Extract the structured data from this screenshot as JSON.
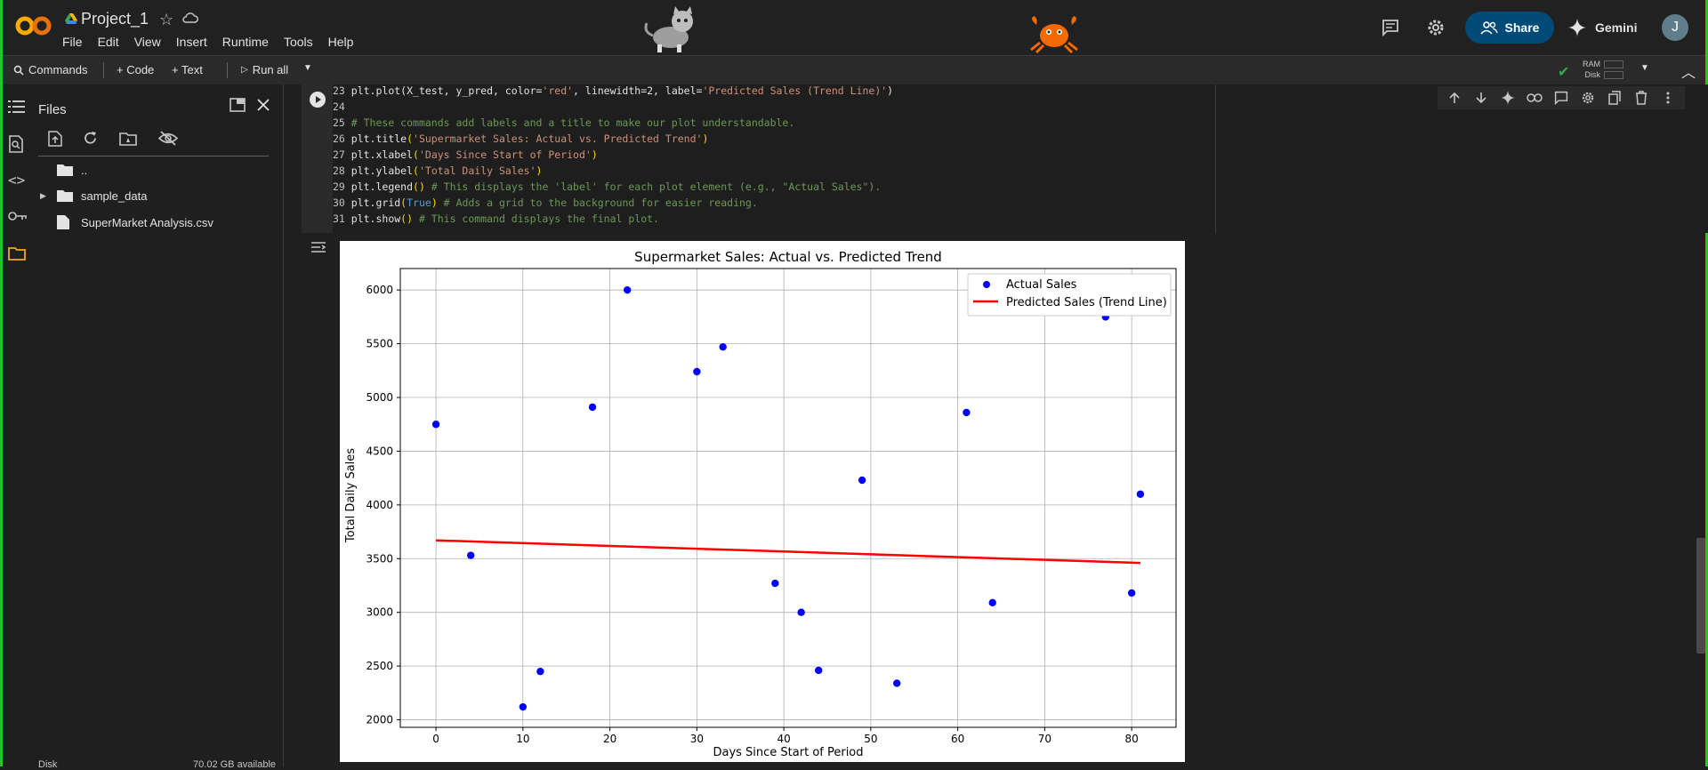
{
  "app": {
    "project_title": "Project_1"
  },
  "menu": [
    "File",
    "Edit",
    "View",
    "Insert",
    "Runtime",
    "Tools",
    "Help"
  ],
  "header": {
    "share_label": "Share",
    "gemini_label": "Gemini",
    "avatar_initial": "J"
  },
  "toolbar": {
    "commands": "Commands",
    "code": "+ Code",
    "text": "+ Text",
    "run_all": "Run all",
    "ram": "RAM",
    "disk": "Disk"
  },
  "files_panel": {
    "title": "Files",
    "items": [
      {
        "label": "..",
        "type": "parent"
      },
      {
        "label": "sample_data",
        "type": "folder"
      },
      {
        "label": "SuperMarket Analysis.csv",
        "type": "file"
      }
    ],
    "disk_label": "Disk",
    "disk_free": "70.02 GB available"
  },
  "code_lines": [
    {
      "n": "23",
      "tokens": [
        [
          "kw",
          "plt.plot(X_test, y_pred, color="
        ],
        [
          "str",
          "'red'"
        ],
        [
          "kw",
          ", linewidth=2, label="
        ],
        [
          "str",
          "'Predicted Sales (Trend Line)'"
        ],
        [
          "kw",
          ")"
        ]
      ]
    },
    {
      "n": "24",
      "tokens": []
    },
    {
      "n": "25",
      "tokens": [
        [
          "cm",
          "# These commands add labels and a title to make our plot understandable."
        ]
      ]
    },
    {
      "n": "26",
      "tokens": [
        [
          "kw",
          "plt.title"
        ],
        [
          "pn",
          "("
        ],
        [
          "str",
          "'Supermarket Sales: Actual vs. Predicted Trend'"
        ],
        [
          "pn",
          ")"
        ]
      ]
    },
    {
      "n": "27",
      "tokens": [
        [
          "kw",
          "plt.xlabel"
        ],
        [
          "pn",
          "("
        ],
        [
          "str",
          "'Days Since Start of Period'"
        ],
        [
          "pn",
          ")"
        ]
      ]
    },
    {
      "n": "28",
      "tokens": [
        [
          "kw",
          "plt.ylabel"
        ],
        [
          "pn",
          "("
        ],
        [
          "str",
          "'Total Daily Sales'"
        ],
        [
          "pn",
          ")"
        ]
      ]
    },
    {
      "n": "29",
      "tokens": [
        [
          "kw",
          "plt.legend"
        ],
        [
          "pn",
          "()"
        ],
        [
          "cm",
          " # This displays the 'label' for each plot element (e.g., \"Actual Sales\")."
        ]
      ]
    },
    {
      "n": "30",
      "tokens": [
        [
          "kw",
          "plt.grid"
        ],
        [
          "pn",
          "("
        ],
        [
          "bl",
          "True"
        ],
        [
          "pn",
          ")"
        ],
        [
          "cm",
          " # Adds a grid to the background for easier reading."
        ]
      ]
    },
    {
      "n": "31",
      "tokens": [
        [
          "kw",
          "plt.show"
        ],
        [
          "pn",
          "()"
        ],
        [
          "cm",
          " # This command displays the final plot."
        ]
      ]
    }
  ],
  "chart_data": {
    "type": "scatter",
    "title": "Supermarket Sales: Actual vs. Predicted Trend",
    "xlabel": "Days Since Start of Period",
    "ylabel": "Total Daily Sales",
    "xlim": [
      -4.1,
      85.1
    ],
    "ylim": [
      1930,
      6200
    ],
    "xticks": [
      0,
      10,
      20,
      30,
      40,
      50,
      60,
      70,
      80
    ],
    "yticks": [
      2000,
      2500,
      3000,
      3500,
      4000,
      4500,
      5000,
      5500,
      6000
    ],
    "grid": true,
    "legend": "top-right",
    "series": [
      {
        "name": "Actual Sales",
        "kind": "scatter",
        "color": "#0000ff",
        "points": [
          [
            0,
            4750
          ],
          [
            4,
            3530
          ],
          [
            10,
            2120
          ],
          [
            12,
            2450
          ],
          [
            18,
            4910
          ],
          [
            22,
            6000
          ],
          [
            30,
            5240
          ],
          [
            33,
            5470
          ],
          [
            39,
            3270
          ],
          [
            42,
            3000
          ],
          [
            44,
            2460
          ],
          [
            49,
            4230
          ],
          [
            53,
            2340
          ],
          [
            61,
            4860
          ],
          [
            64,
            3090
          ],
          [
            77,
            5750
          ],
          [
            80,
            3180
          ],
          [
            81,
            4100
          ]
        ]
      },
      {
        "name": "Predicted Sales (Trend Line)",
        "kind": "line",
        "color": "#ff0000",
        "points": [
          [
            0,
            3670
          ],
          [
            81,
            3460
          ]
        ]
      }
    ]
  }
}
